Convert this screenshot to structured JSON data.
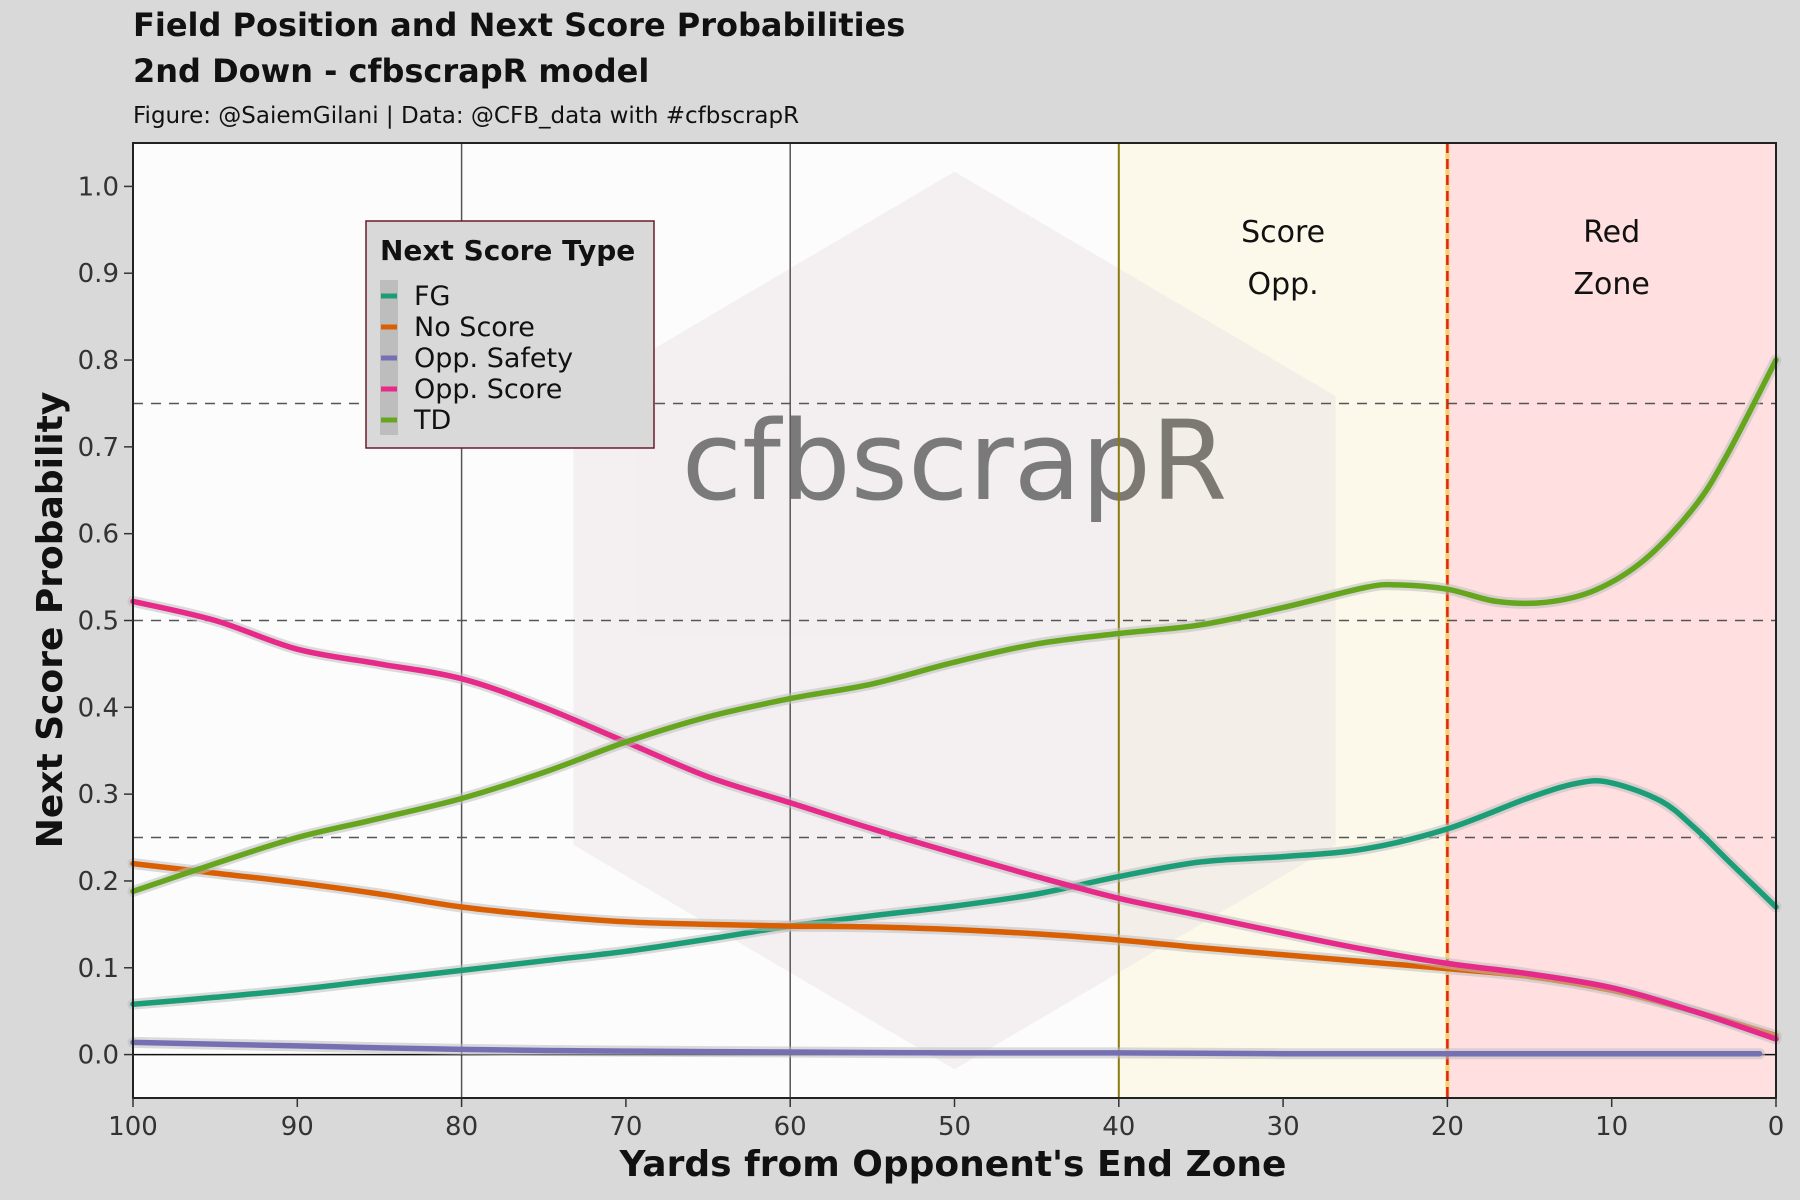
{
  "chart_data": {
    "type": "line",
    "title": "Field Position and Next Score Probabilities",
    "subtitle": "2nd Down - cfbscrapR model",
    "caption": "Figure: @SaiemGilani | Data: @CFB_data with #cfbscrapR",
    "xlabel": "Yards from Opponent's End Zone",
    "ylabel": "Next Score Probability",
    "xlim": [
      100,
      0
    ],
    "ylim": [
      -0.05,
      1.05
    ],
    "x_reversed": true,
    "x_ticks": [
      100,
      90,
      80,
      70,
      60,
      50,
      40,
      30,
      20,
      10,
      0
    ],
    "y_ticks": [
      0.0,
      0.1,
      0.2,
      0.3,
      0.4,
      0.5,
      0.6,
      0.7,
      0.8,
      0.9,
      1.0
    ],
    "y_tick_labels": [
      "0.0",
      "0.1",
      "0.2",
      "0.3",
      "0.4",
      "0.5",
      "0.6",
      "0.7",
      "0.8",
      "0.9",
      "1.0"
    ],
    "hlines_dashed": [
      0.25,
      0.5,
      0.75
    ],
    "vlines": [
      80,
      60,
      40,
      20,
      0
    ],
    "watermark": "cfbscrapR",
    "zones": [
      {
        "label_lines": [
          "Score",
          "Opp."
        ],
        "from": 40,
        "to": 20,
        "color": "#fdf9ea"
      },
      {
        "label_lines": [
          "Red",
          "Zone"
        ],
        "from": 20,
        "to": 0,
        "color": "#ffdfdf"
      }
    ],
    "legend": {
      "title": "Next Score Type",
      "placement": "top-left"
    },
    "series": [
      {
        "name": "FG",
        "color": "#1b9e77",
        "points": [
          [
            100,
            0.058
          ],
          [
            95,
            0.066
          ],
          [
            90,
            0.075
          ],
          [
            85,
            0.086
          ],
          [
            80,
            0.097
          ],
          [
            75,
            0.108
          ],
          [
            70,
            0.119
          ],
          [
            65,
            0.133
          ],
          [
            60,
            0.148
          ],
          [
            55,
            0.16
          ],
          [
            50,
            0.171
          ],
          [
            45,
            0.185
          ],
          [
            40,
            0.205
          ],
          [
            35,
            0.222
          ],
          [
            30,
            0.228
          ],
          [
            25,
            0.237
          ],
          [
            20,
            0.26
          ],
          [
            15,
            0.296
          ],
          [
            12,
            0.313
          ],
          [
            10,
            0.313
          ],
          [
            7,
            0.292
          ],
          [
            5,
            0.262
          ],
          [
            3,
            0.225
          ],
          [
            0,
            0.17
          ]
        ]
      },
      {
        "name": "No Score",
        "color": "#d95f02",
        "points": [
          [
            100,
            0.22
          ],
          [
            95,
            0.209
          ],
          [
            90,
            0.198
          ],
          [
            85,
            0.185
          ],
          [
            80,
            0.17
          ],
          [
            75,
            0.16
          ],
          [
            70,
            0.153
          ],
          [
            65,
            0.15
          ],
          [
            60,
            0.148
          ],
          [
            55,
            0.147
          ],
          [
            50,
            0.144
          ],
          [
            45,
            0.139
          ],
          [
            40,
            0.132
          ],
          [
            35,
            0.123
          ],
          [
            30,
            0.115
          ],
          [
            25,
            0.107
          ],
          [
            20,
            0.099
          ],
          [
            15,
            0.09
          ],
          [
            10,
            0.074
          ],
          [
            5,
            0.05
          ],
          [
            0,
            0.022
          ]
        ]
      },
      {
        "name": "Opp. Safety",
        "color": "#7570b3",
        "points": [
          [
            100,
            0.014
          ],
          [
            90,
            0.01
          ],
          [
            80,
            0.006
          ],
          [
            70,
            0.004
          ],
          [
            60,
            0.003
          ],
          [
            50,
            0.002
          ],
          [
            40,
            0.002
          ],
          [
            30,
            0.001
          ],
          [
            20,
            0.001
          ],
          [
            10,
            0.001
          ],
          [
            1,
            0.001
          ]
        ]
      },
      {
        "name": "Opp. Score",
        "color": "#e7298a",
        "points": [
          [
            100,
            0.522
          ],
          [
            95,
            0.5
          ],
          [
            90,
            0.467
          ],
          [
            85,
            0.45
          ],
          [
            80,
            0.433
          ],
          [
            75,
            0.4
          ],
          [
            70,
            0.36
          ],
          [
            65,
            0.32
          ],
          [
            60,
            0.29
          ],
          [
            55,
            0.26
          ],
          [
            50,
            0.232
          ],
          [
            45,
            0.205
          ],
          [
            40,
            0.18
          ],
          [
            35,
            0.16
          ],
          [
            30,
            0.14
          ],
          [
            25,
            0.121
          ],
          [
            20,
            0.105
          ],
          [
            15,
            0.093
          ],
          [
            10,
            0.077
          ],
          [
            5,
            0.05
          ],
          [
            0,
            0.018
          ]
        ]
      },
      {
        "name": "TD",
        "color": "#66a61e",
        "points": [
          [
            100,
            0.188
          ],
          [
            95,
            0.22
          ],
          [
            90,
            0.25
          ],
          [
            85,
            0.272
          ],
          [
            80,
            0.295
          ],
          [
            75,
            0.325
          ],
          [
            70,
            0.36
          ],
          [
            65,
            0.389
          ],
          [
            60,
            0.41
          ],
          [
            55,
            0.427
          ],
          [
            50,
            0.452
          ],
          [
            45,
            0.473
          ],
          [
            40,
            0.485
          ],
          [
            35,
            0.495
          ],
          [
            30,
            0.515
          ],
          [
            25,
            0.538
          ],
          [
            23,
            0.541
          ],
          [
            20,
            0.536
          ],
          [
            17,
            0.522
          ],
          [
            14,
            0.521
          ],
          [
            11,
            0.535
          ],
          [
            8,
            0.57
          ],
          [
            5,
            0.63
          ],
          [
            3,
            0.69
          ],
          [
            0,
            0.8
          ]
        ]
      }
    ]
  }
}
